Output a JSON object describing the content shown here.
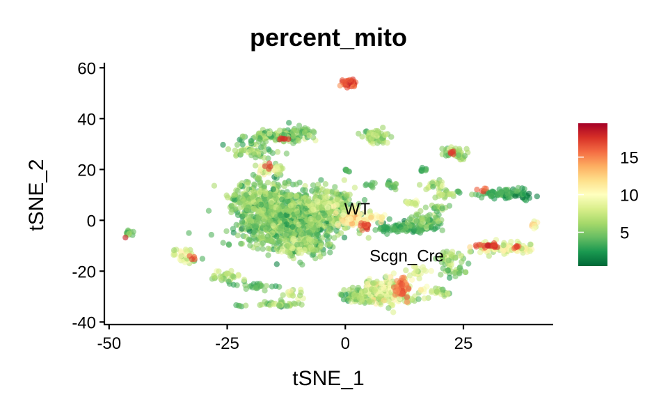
{
  "chart_data": {
    "type": "scatter",
    "title": "percent_mito",
    "xlabel": "tSNE_1",
    "ylabel": "tSNE_2",
    "xlim": [
      -51,
      44
    ],
    "ylim": [
      -41,
      62
    ],
    "x_ticks": [
      {
        "value": -50,
        "label": "-50"
      },
      {
        "value": -25,
        "label": "-25"
      },
      {
        "value": 0,
        "label": "0"
      },
      {
        "value": 25,
        "label": "25"
      }
    ],
    "y_ticks": [
      {
        "value": 60,
        "label": "60"
      },
      {
        "value": 40,
        "label": "40"
      },
      {
        "value": 20,
        "label": "20"
      },
      {
        "value": 0,
        "label": "0"
      },
      {
        "value": -20,
        "label": "-20"
      },
      {
        "value": -40,
        "label": "-40"
      }
    ],
    "grid": false,
    "legend_placement": "right",
    "color_scale": {
      "min": 0.5,
      "max": 19.5,
      "palette": "RdYlGn reversed",
      "stops": [
        "#006837",
        "#1a9850",
        "#66bd63",
        "#a6d96a",
        "#d9ef8b",
        "#ffffbf",
        "#fee08b",
        "#fdae61",
        "#f46d43",
        "#d73027",
        "#a50026"
      ],
      "ticks": [
        {
          "value": 5,
          "label": "5"
        },
        {
          "value": 10,
          "label": "10"
        },
        {
          "value": 15,
          "label": "15"
        }
      ]
    },
    "annotations": [
      {
        "text": "WT",
        "x": 2.5,
        "y": 4.5
      },
      {
        "text": "Scgn_Cre",
        "x": 13,
        "y": -14
      }
    ],
    "clusters": [
      {
        "cx": -12,
        "cy": 0,
        "sx": 8.5,
        "sy": 9.5,
        "n": 900,
        "value": 5.5,
        "spread": 3
      },
      {
        "cx": -18,
        "cy": 8,
        "sx": 6,
        "sy": 7,
        "n": 250,
        "value": 6,
        "spread": 3
      },
      {
        "cx": -4,
        "cy": 5,
        "sx": 5,
        "sy": 6,
        "n": 250,
        "value": 7,
        "spread": 3
      },
      {
        "cx": 2,
        "cy": 1,
        "sx": 2.5,
        "sy": 3,
        "n": 70,
        "value": 12,
        "spread": 3
      },
      {
        "cx": 4,
        "cy": -2,
        "sx": 1.2,
        "sy": 1.2,
        "n": 12,
        "value": 17,
        "spread": 2
      },
      {
        "cx": -9,
        "cy": -10,
        "sx": 4,
        "sy": 3,
        "n": 120,
        "value": 7,
        "spread": 3
      },
      {
        "cx": -14,
        "cy": 33,
        "sx": 6,
        "sy": 2,
        "n": 100,
        "value": 6,
        "spread": 3
      },
      {
        "cx": -10,
        "cy": 35,
        "sx": 3,
        "sy": 2,
        "n": 40,
        "value": 5,
        "spread": 2
      },
      {
        "cx": -20,
        "cy": 27,
        "sx": 4,
        "sy": 3,
        "n": 60,
        "value": 6,
        "spread": 3
      },
      {
        "cx": -16,
        "cy": 20,
        "sx": 3,
        "sy": 2,
        "n": 40,
        "value": 9,
        "spread": 3
      },
      {
        "cx": -13,
        "cy": 32,
        "sx": 1,
        "sy": 0.8,
        "n": 6,
        "value": 18,
        "spread": 1
      },
      {
        "cx": -16,
        "cy": 21,
        "sx": 1,
        "sy": 0.8,
        "n": 4,
        "value": 18,
        "spread": 1
      },
      {
        "cx": 0.8,
        "cy": 54,
        "sx": 1.2,
        "sy": 1.2,
        "n": 45,
        "value": 17,
        "spread": 2
      },
      {
        "cx": 6.5,
        "cy": 33,
        "sx": 2.2,
        "sy": 2.2,
        "n": 70,
        "value": 7,
        "spread": 3
      },
      {
        "cx": 0.5,
        "cy": 19.5,
        "sx": 0.6,
        "sy": 0.6,
        "n": 6,
        "value": 4,
        "spread": 1
      },
      {
        "cx": 5,
        "cy": 1,
        "sx": 3,
        "sy": 2,
        "n": 30,
        "value": 11,
        "spread": 3
      },
      {
        "cx": 23.5,
        "cy": 26.5,
        "sx": 2,
        "sy": 2,
        "n": 60,
        "value": 7,
        "spread": 3
      },
      {
        "cx": 22.5,
        "cy": 26.5,
        "sx": 0.8,
        "sy": 0.6,
        "n": 5,
        "value": 18,
        "spread": 1
      },
      {
        "cx": 12.5,
        "cy": -3,
        "sx": 6,
        "sy": 1.8,
        "n": 100,
        "value": 4,
        "spread": 2
      },
      {
        "cx": 17,
        "cy": 0,
        "sx": 3,
        "sy": 2.5,
        "n": 60,
        "value": 6,
        "spread": 3
      },
      {
        "cx": 14,
        "cy": 7,
        "sx": 1.2,
        "sy": 1.2,
        "n": 15,
        "value": 8,
        "spread": 3
      },
      {
        "cx": 19,
        "cy": 14,
        "sx": 2,
        "sy": 1.5,
        "n": 25,
        "value": 8,
        "spread": 3
      },
      {
        "cx": 21,
        "cy": 10,
        "sx": 1.8,
        "sy": 1.2,
        "n": 20,
        "value": 8,
        "spread": 3
      },
      {
        "cx": 10,
        "cy": 14,
        "sx": 1.5,
        "sy": 1.2,
        "n": 15,
        "value": 5,
        "spread": 2
      },
      {
        "cx": 20,
        "cy": 5,
        "sx": 1.5,
        "sy": 1.2,
        "n": 15,
        "value": 6,
        "spread": 2
      },
      {
        "cx": 6,
        "cy": 14,
        "sx": 1,
        "sy": 1,
        "n": 8,
        "value": 4,
        "spread": 2
      },
      {
        "cx": 16.5,
        "cy": 20,
        "sx": 0.8,
        "sy": 0.8,
        "n": 8,
        "value": 4,
        "spread": 1
      },
      {
        "cx": 34,
        "cy": 10.5,
        "sx": 5,
        "sy": 1.8,
        "n": 100,
        "value": 4,
        "spread": 2
      },
      {
        "cx": 29,
        "cy": 12,
        "sx": 1,
        "sy": 0.8,
        "n": 5,
        "value": 17,
        "spread": 1
      },
      {
        "cx": 24,
        "cy": 11,
        "sx": 0.6,
        "sy": 0.5,
        "n": 4,
        "value": 4,
        "spread": 1
      },
      {
        "cx": 40,
        "cy": -1.5,
        "sx": 0.8,
        "sy": 1,
        "n": 8,
        "value": 12,
        "spread": 3
      },
      {
        "cx": 33,
        "cy": -11,
        "sx": 5,
        "sy": 1.8,
        "n": 90,
        "value": 10,
        "spread": 4
      },
      {
        "cx": 30.5,
        "cy": -10,
        "sx": 2,
        "sy": 0.6,
        "n": 22,
        "value": 18,
        "spread": 1
      },
      {
        "cx": 36,
        "cy": -10.5,
        "sx": 1,
        "sy": 0.6,
        "n": 6,
        "value": 17,
        "spread": 1
      },
      {
        "cx": 22,
        "cy": -15,
        "sx": 3,
        "sy": 2,
        "n": 40,
        "value": 7,
        "spread": 3
      },
      {
        "cx": 23,
        "cy": -20,
        "sx": 2,
        "sy": 2,
        "n": 25,
        "value": 6,
        "spread": 3
      },
      {
        "cx": 20,
        "cy": -28,
        "sx": 2,
        "sy": 1.5,
        "n": 20,
        "value": 7,
        "spread": 3
      },
      {
        "cx": 9,
        "cy": -28,
        "sx": 5,
        "sy": 4,
        "n": 220,
        "value": 9,
        "spread": 4
      },
      {
        "cx": 3,
        "cy": -30,
        "sx": 3,
        "sy": 2,
        "n": 80,
        "value": 6,
        "spread": 3
      },
      {
        "cx": 12,
        "cy": -27,
        "sx": 1.5,
        "sy": 3,
        "n": 40,
        "value": 16,
        "spread": 2
      },
      {
        "cx": 15,
        "cy": -20,
        "sx": 2,
        "sy": 2,
        "n": 20,
        "value": 9,
        "spread": 3
      },
      {
        "cx": -46,
        "cy": -5,
        "sx": 1,
        "sy": 0.8,
        "n": 12,
        "value": 5,
        "spread": 2
      },
      {
        "cx": -46.3,
        "cy": -6.8,
        "sx": 0.3,
        "sy": 0.3,
        "n": 1,
        "value": 19,
        "spread": 0
      },
      {
        "cx": -34,
        "cy": -14,
        "sx": 2,
        "sy": 2.5,
        "n": 40,
        "value": 10,
        "spread": 4
      },
      {
        "cx": -32,
        "cy": -15,
        "sx": 0.8,
        "sy": 0.8,
        "n": 4,
        "value": 17,
        "spread": 1
      },
      {
        "cx": -25,
        "cy": -22,
        "sx": 2.5,
        "sy": 1.5,
        "n": 30,
        "value": 8,
        "spread": 3
      },
      {
        "cx": -18,
        "cy": -26,
        "sx": 4,
        "sy": 1.5,
        "n": 30,
        "value": 5,
        "spread": 2
      },
      {
        "cx": -14,
        "cy": -33,
        "sx": 4,
        "sy": 1,
        "n": 30,
        "value": 6,
        "spread": 3
      },
      {
        "cx": -11,
        "cy": -29,
        "sx": 2,
        "sy": 2,
        "n": 15,
        "value": 8,
        "spread": 3
      },
      {
        "cx": -22,
        "cy": -34,
        "sx": 1,
        "sy": 0.6,
        "n": 5,
        "value": 5,
        "spread": 2
      }
    ]
  }
}
